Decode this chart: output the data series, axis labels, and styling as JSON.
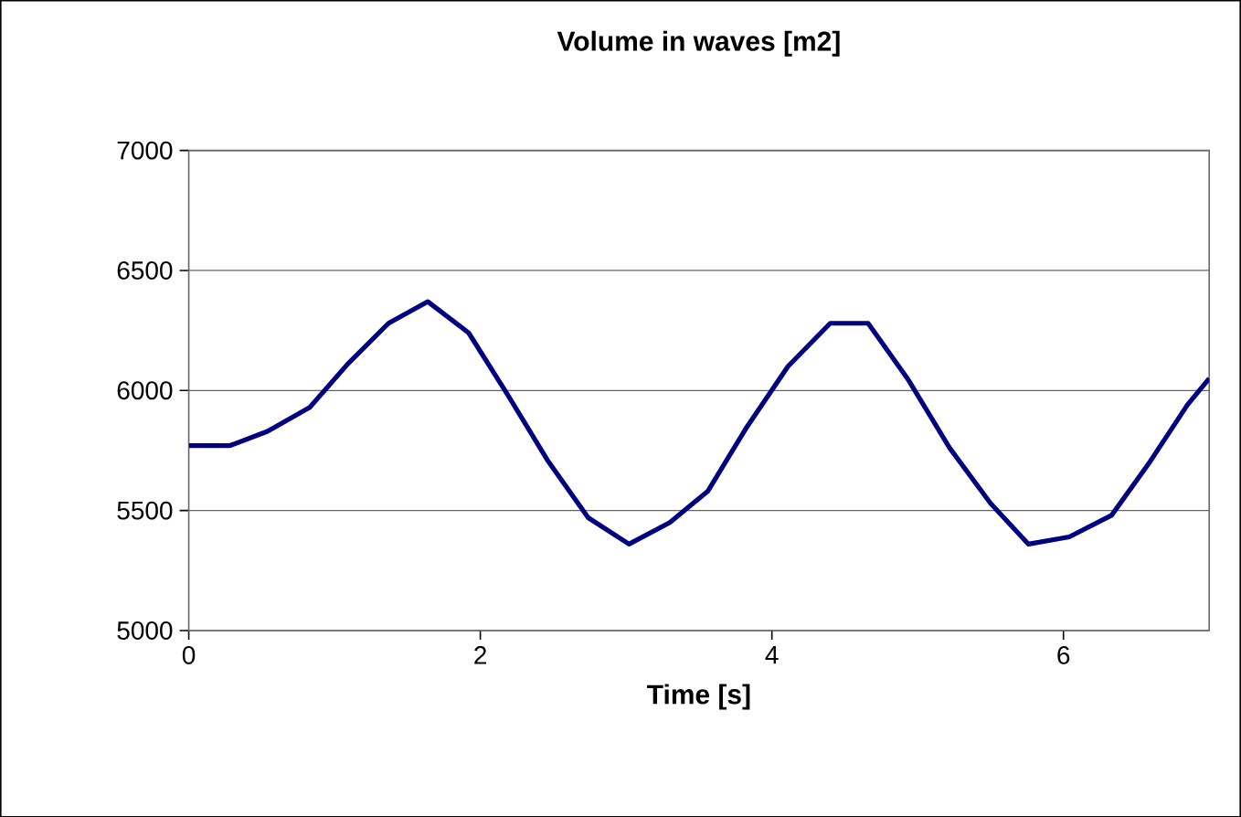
{
  "chart_data": {
    "type": "line",
    "title": "Volume in waves [m2]",
    "xlabel": "Time [s]",
    "x": [
      0,
      0.28,
      0.54,
      0.83,
      1.09,
      1.37,
      1.64,
      1.92,
      2.19,
      2.46,
      2.74,
      3.02,
      3.3,
      3.56,
      3.82,
      4.11,
      4.4,
      4.66,
      4.93,
      5.22,
      5.5,
      5.76,
      6.04,
      6.33,
      6.59,
      6.85,
      7
    ],
    "series": [
      {
        "color": "#000080",
        "values": [
          5770,
          5770,
          5830,
          5930,
          6110,
          6280,
          6370,
          6240,
          5980,
          5710,
          5470,
          5360,
          5450,
          5580,
          5840,
          6100,
          6280,
          6280,
          6050,
          5760,
          5530,
          5360,
          5390,
          5480,
          5700,
          5940,
          6050
        ]
      }
    ],
    "xlim": [
      0,
      7
    ],
    "ylim": [
      5000,
      7000
    ],
    "xticks": [
      0,
      2,
      4,
      6
    ],
    "yticks": [
      5000,
      5500,
      6000,
      6500,
      7000
    ],
    "grid": "y",
    "marker": "none",
    "line_style": "solid"
  }
}
